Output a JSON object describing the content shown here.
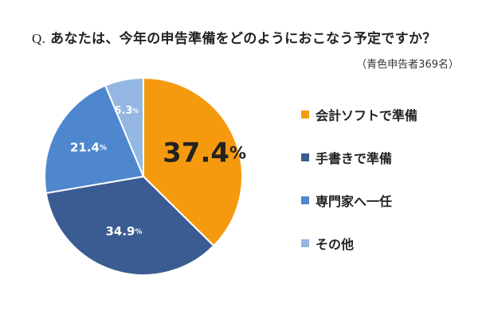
{
  "question": {
    "prefix": "Q.",
    "text": "あなたは、今年の申告準備をどのようにおこなう予定ですか？"
  },
  "respondents": "（青色申告者369名）",
  "chart_data": {
    "type": "pie",
    "title": "",
    "unit": "%",
    "slices": [
      {
        "label": "会計ソフトで準備",
        "value": 37.4,
        "color": "#F59A0F"
      },
      {
        "label": "手書きで準備",
        "value": 34.9,
        "color": "#3B5C92"
      },
      {
        "label": "専門家へ一任",
        "value": 21.4,
        "color": "#4F87CF"
      },
      {
        "label": "その他",
        "value": 6.3,
        "color": "#93B7E2"
      }
    ],
    "start_angle_deg": 0,
    "direction": "clockwise",
    "legend_position": "right"
  }
}
